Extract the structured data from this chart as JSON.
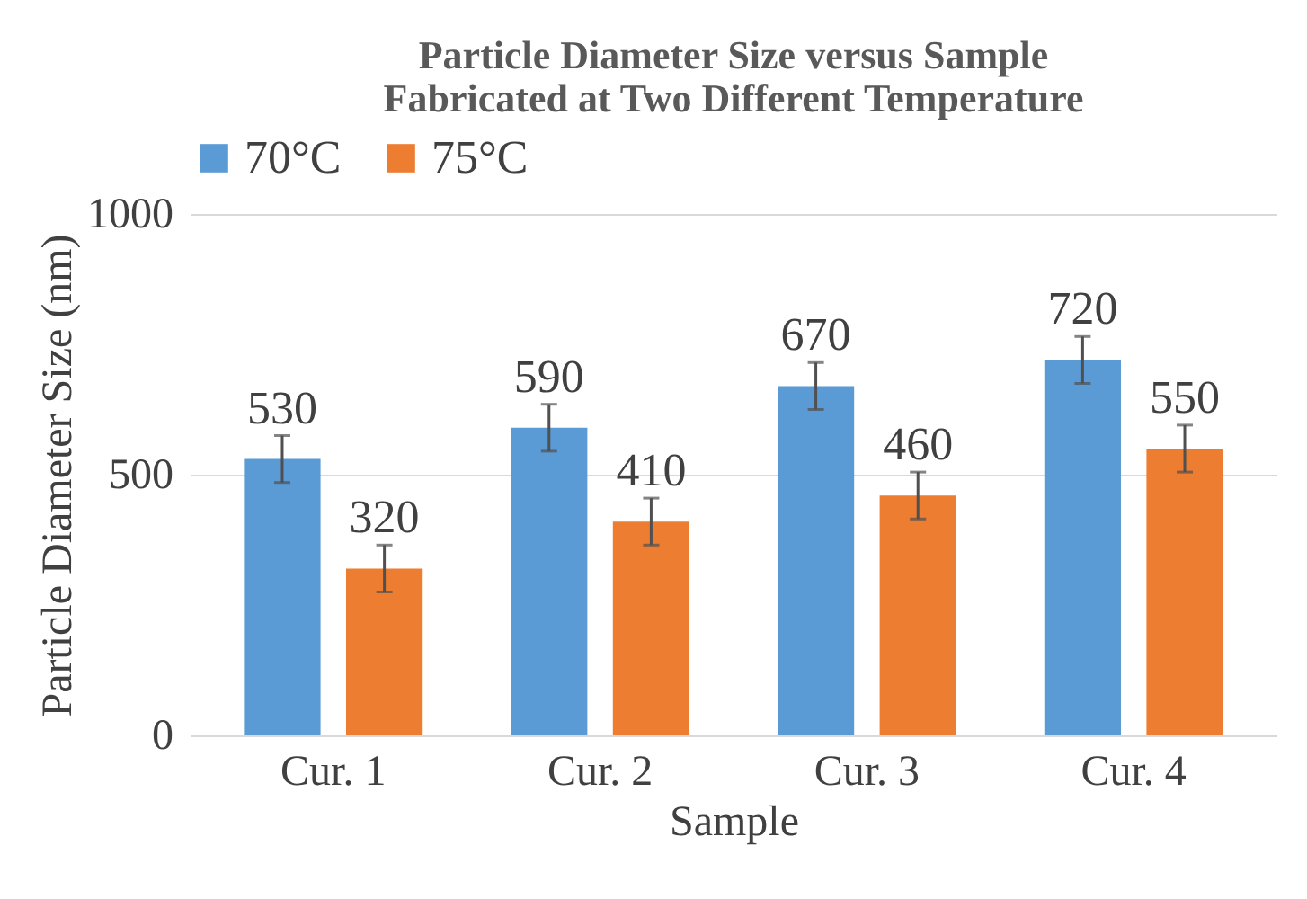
{
  "chart_data": {
    "type": "bar",
    "title": [
      "Particle Diameter Size versus Sample",
      "Fabricated at Two Different Temperature"
    ],
    "xlabel": "Sample",
    "ylabel": "Particle Diameter Size (nm)",
    "categories": [
      "Cur. 1",
      "Cur. 2",
      "Cur. 3",
      "Cur. 4"
    ],
    "series": [
      {
        "name": "70°C",
        "color": "#5b9bd5",
        "values": [
          530,
          590,
          670,
          720
        ],
        "errors": [
          45,
          45,
          45,
          45
        ]
      },
      {
        "name": "75°C",
        "color": "#ed7d31",
        "values": [
          320,
          410,
          460,
          550
        ],
        "errors": [
          45,
          45,
          45,
          45
        ]
      }
    ],
    "ylim": [
      0,
      1000
    ],
    "yticks": [
      0,
      500,
      1000
    ],
    "grid": "y",
    "legend": "top",
    "data_labels": true
  }
}
